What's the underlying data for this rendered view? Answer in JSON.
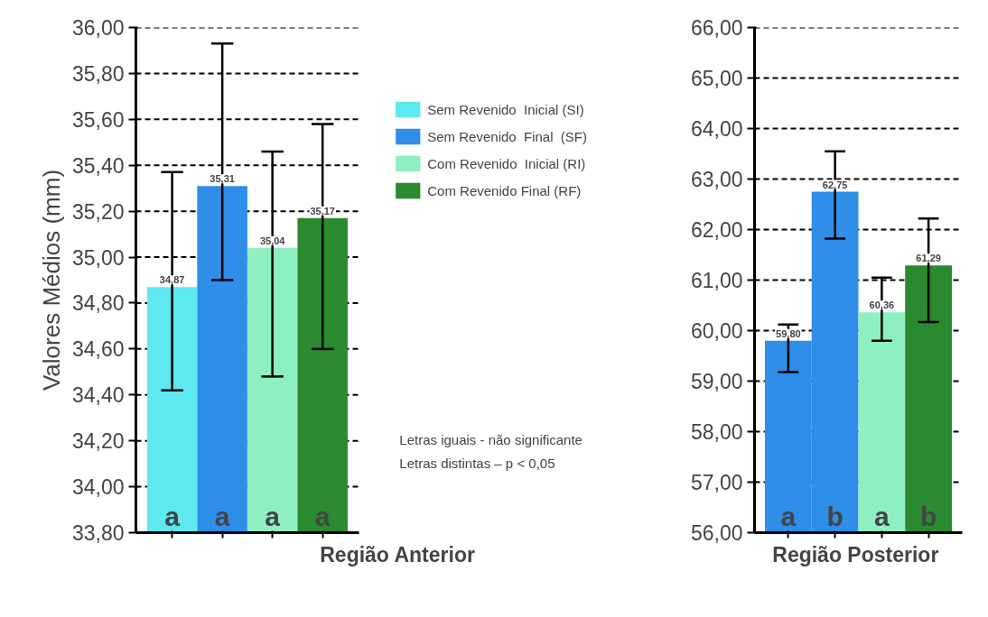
{
  "chart_data": [
    {
      "type": "bar",
      "xlabel": "Região Anterior",
      "ylabel": "Valores Médios (mm)",
      "categories": [
        null
      ],
      "ylim": [
        33.8,
        36.0
      ],
      "yticks": [
        {
          "value": 33.8,
          "label": "33,80"
        },
        {
          "value": 34.0,
          "label": "34,00"
        },
        {
          "value": 34.2,
          "label": "34,20"
        },
        {
          "value": 34.4,
          "label": "34,40"
        },
        {
          "value": 34.6,
          "label": "34,60"
        },
        {
          "value": 34.8,
          "label": "34,80"
        },
        {
          "value": 35.0,
          "label": "35,00"
        },
        {
          "value": 35.2,
          "label": "35,20"
        },
        {
          "value": 35.4,
          "label": "35,40"
        },
        {
          "value": 35.6,
          "label": "35,60"
        },
        {
          "value": 35.8,
          "label": "35,80"
        },
        {
          "value": 36.0,
          "label": "36,00"
        }
      ],
      "grid": "y",
      "legend": "right",
      "series": [
        {
          "name": "Sem Revenido  Inicial (SI)",
          "color": "#5ee8f0",
          "values": [
            34.87
          ],
          "value_labels": [
            "34,87"
          ],
          "errors": [
            [
              34.42,
              35.37
            ]
          ]
        },
        {
          "name": "Sem Revenido  Final  (SF)",
          "color": "#2e8ee8",
          "values": [
            35.31
          ],
          "value_labels": [
            "35,31"
          ],
          "errors": [
            [
              34.9,
              35.93
            ]
          ]
        },
        {
          "name": "Com Revenido  Inicial (RI)",
          "color": "#8ef0c0",
          "values": [
            35.04
          ],
          "value_labels": [
            "35,04"
          ],
          "errors": [
            [
              34.48,
              35.46
            ]
          ]
        },
        {
          "name": "Com Revenido Final (RF)",
          "color": "#2a8a30",
          "values": [
            35.17
          ],
          "value_labels": [
            "35,17"
          ],
          "errors": [
            [
              34.6,
              35.58
            ]
          ]
        }
      ],
      "annotations": [
        {
          "text": "a",
          "y": 33.8
        },
        {
          "text": "a",
          "y": 33.8
        },
        {
          "text": "a",
          "y": 33.8
        },
        {
          "text": "a",
          "y": 33.8
        },
        "Letras iguais - não significante",
        "Letras distintas –  p < 0,05"
      ]
    },
    {
      "type": "bar",
      "xlabel": "Região  Posterior",
      "categories": [
        null
      ],
      "ylim": [
        56,
        66
      ],
      "yticks": [
        {
          "value": 56,
          "label": "56,00"
        },
        {
          "value": 57,
          "label": "57,00"
        },
        {
          "value": 58,
          "label": "58,00"
        },
        {
          "value": 59,
          "label": "59,00"
        },
        {
          "value": 60,
          "label": "60,00"
        },
        {
          "value": 61,
          "label": "61,00"
        },
        {
          "value": 62,
          "label": "62,00"
        },
        {
          "value": 63,
          "label": "63,00"
        },
        {
          "value": 64,
          "label": "64,00"
        },
        {
          "value": 65,
          "label": "65,00"
        },
        {
          "value": 66,
          "label": "66,00"
        }
      ],
      "grid": "y",
      "series": [
        {
          "color": "#2e8ee8",
          "values": [
            59.8
          ],
          "value_labels": [
            "59,80"
          ],
          "errors": [
            [
              59.18,
              60.12
            ]
          ]
        },
        {
          "color": "#2e8ee8",
          "values": [
            62.75
          ],
          "value_labels": [
            "62,75"
          ],
          "errors": [
            [
              61.82,
              63.55
            ]
          ]
        },
        {
          "color": "#8ef0c0",
          "values": [
            60.36
          ],
          "value_labels": [
            "60,36"
          ],
          "errors": [
            [
              59.8,
              61.05
            ]
          ]
        },
        {
          "color": "#2a8a30",
          "values": [
            61.29
          ],
          "value_labels": [
            "61,29"
          ],
          "errors": [
            [
              60.17,
              62.22
            ]
          ]
        }
      ],
      "annotations": [
        {
          "text": "a",
          "y": 56
        },
        {
          "text": "b",
          "y": 56
        },
        {
          "text": "a",
          "y": 56
        },
        {
          "text": "b",
          "y": 56
        }
      ]
    }
  ]
}
